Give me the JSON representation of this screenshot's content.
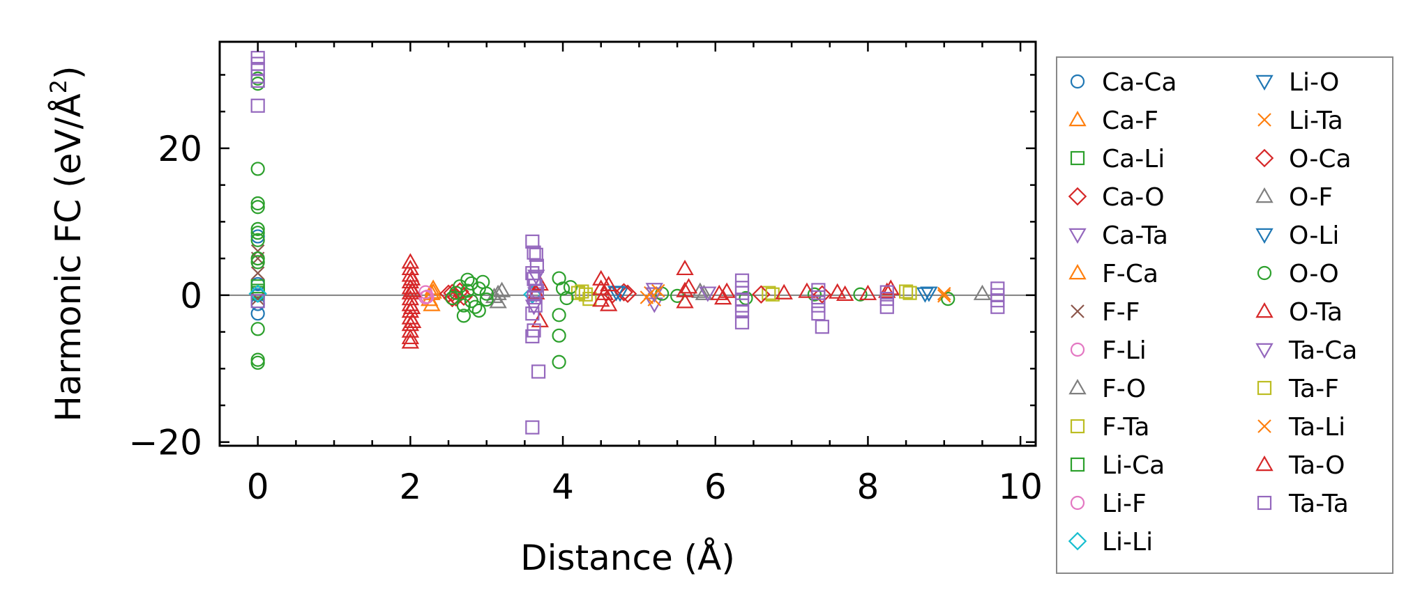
{
  "chart_data": {
    "type": "scatter",
    "title": "",
    "xlabel": "Distance (Å)",
    "ylabel_main": "Harmonic FC (eV/Å",
    "ylabel_sup": "2",
    "ylabel_close": ")",
    "xlim": [
      -0.5,
      10.2
    ],
    "ylim": [
      -20.5,
      34.5
    ],
    "xticks": [
      0,
      2,
      4,
      6,
      8,
      10
    ],
    "xtick_labels": [
      "0",
      "2",
      "4",
      "6",
      "8",
      "10"
    ],
    "yticks": [
      -20,
      0,
      20
    ],
    "ytick_labels": [
      "−20",
      "0",
      "20"
    ],
    "xminor": [
      -0.5,
      0.5,
      1,
      1.5,
      2.5,
      3,
      3.5,
      4.5,
      5,
      5.5,
      6.5,
      7,
      7.5,
      8.5,
      9,
      9.5
    ],
    "yminor": [
      -15,
      -10,
      -5,
      5,
      10,
      15,
      25,
      30
    ],
    "zero_line": true,
    "legend_position": "outside-right",
    "series": [
      {
        "name": "Ca-Ca",
        "marker": "circle",
        "color": "#1f77b4",
        "points": [
          [
            0,
            0
          ],
          [
            0,
            -2.5
          ],
          [
            0,
            1.5
          ],
          [
            0,
            8
          ],
          [
            0,
            -1.2
          ]
        ]
      },
      {
        "name": "Ca-F",
        "marker": "triangle-up",
        "color": "#ff7f0e",
        "points": [
          [
            2.28,
            0.2
          ],
          [
            2.28,
            -1.3
          ],
          [
            2.3,
            0.9
          ]
        ]
      },
      {
        "name": "Ca-Li",
        "marker": "square",
        "color": "#2ca02c",
        "points": [
          [
            0,
            0.3
          ],
          [
            0,
            0.6
          ]
        ]
      },
      {
        "name": "Ca-O",
        "marker": "diamond",
        "color": "#d62728",
        "points": [
          [
            2.55,
            0.3
          ],
          [
            2.6,
            -0.3
          ],
          [
            2.65,
            0.5
          ],
          [
            2.7,
            -0.2
          ],
          [
            4.65,
            0.1
          ],
          [
            4.85,
            0.2
          ]
        ]
      },
      {
        "name": "Ca-Ta",
        "marker": "triangle-down",
        "color": "#9467bd",
        "points": [
          [
            3.65,
            0.2
          ],
          [
            5.2,
            -1.2
          ],
          [
            5.2,
            0.8
          ]
        ]
      },
      {
        "name": "F-Ca",
        "marker": "triangle-up",
        "color": "#ff7f0e",
        "points": [
          [
            2.25,
            -0.6
          ],
          [
            2.3,
            0.4
          ]
        ]
      },
      {
        "name": "F-F",
        "marker": "x",
        "color": "#8c564b",
        "points": [
          [
            0,
            5
          ],
          [
            0,
            3
          ],
          [
            0,
            6
          ],
          [
            0,
            -0.5
          ]
        ]
      },
      {
        "name": "F-Li",
        "marker": "circle",
        "color": "#e377c2",
        "points": [
          [
            2.2,
            0.4
          ],
          [
            2.22,
            -0.2
          ]
        ]
      },
      {
        "name": "F-O",
        "marker": "triangle-up",
        "color": "#7f7f7f",
        "points": [
          [
            3.15,
            0.2
          ],
          [
            3.15,
            -0.9
          ],
          [
            3.2,
            0.6
          ],
          [
            5.85,
            0.2
          ],
          [
            9.5,
            0.2
          ]
        ]
      },
      {
        "name": "F-Ta",
        "marker": "square",
        "color": "#bcbd22",
        "points": [
          [
            4.2,
            0.3
          ],
          [
            4.3,
            0.1
          ],
          [
            6.7,
            0.3
          ],
          [
            8.5,
            0.5
          ]
        ]
      },
      {
        "name": "Li-Ca",
        "marker": "square",
        "color": "#2ca02c",
        "points": [
          [
            0,
            1.2
          ]
        ]
      },
      {
        "name": "Li-F",
        "marker": "circle",
        "color": "#e377c2",
        "points": [
          [
            2.2,
            -0.3
          ]
        ]
      },
      {
        "name": "Li-Li",
        "marker": "diamond",
        "color": "#17becf",
        "points": [
          [
            0,
            0.2
          ],
          [
            3.6,
            0.1
          ]
        ]
      },
      {
        "name": "Li-O",
        "marker": "triangle-down",
        "color": "#1f77b4",
        "points": [
          [
            4.75,
            0.3
          ],
          [
            8.75,
            0.2
          ]
        ]
      },
      {
        "name": "Li-Ta",
        "marker": "x",
        "color": "#ff7f0e",
        "points": [
          [
            5.15,
            0.3
          ],
          [
            5.2,
            -0.6
          ],
          [
            9.0,
            -0.1
          ]
        ]
      },
      {
        "name": "O-Ca",
        "marker": "diamond",
        "color": "#d62728",
        "points": [
          [
            2.5,
            0.2
          ],
          [
            2.55,
            -0.4
          ],
          [
            4.8,
            0.4
          ],
          [
            6.6,
            0.1
          ],
          [
            7.4,
            0.1
          ]
        ]
      },
      {
        "name": "O-F",
        "marker": "triangle-up",
        "color": "#7f7f7f",
        "points": [
          [
            3.1,
            -0.2
          ],
          [
            5.8,
            0.5
          ]
        ]
      },
      {
        "name": "O-Li",
        "marker": "triangle-down",
        "color": "#1f77b4",
        "points": [
          [
            4.7,
            0.4
          ],
          [
            8.8,
            0.3
          ]
        ]
      },
      {
        "name": "O-O",
        "marker": "circle",
        "color": "#2ca02c",
        "points": [
          [
            0,
            29.5
          ],
          [
            0,
            28.8
          ],
          [
            0,
            17.2
          ],
          [
            0,
            12.5
          ],
          [
            0,
            12
          ],
          [
            0,
            9
          ],
          [
            0,
            8.5
          ],
          [
            0,
            7.5
          ],
          [
            0,
            5
          ],
          [
            0,
            4.5
          ],
          [
            0,
            -4.6
          ],
          [
            0,
            -8.8
          ],
          [
            0,
            -9.2
          ],
          [
            2.55,
            -0.4
          ],
          [
            2.6,
            0.3
          ],
          [
            2.65,
            1.2
          ],
          [
            2.7,
            -1.4
          ],
          [
            2.7,
            -2.8
          ],
          [
            2.75,
            0.6
          ],
          [
            2.75,
            2.1
          ],
          [
            2.8,
            -0.8
          ],
          [
            2.8,
            1.6
          ],
          [
            2.85,
            -1.6
          ],
          [
            2.9,
            0.9
          ],
          [
            2.9,
            -2.1
          ],
          [
            2.95,
            1.8
          ],
          [
            3,
            0.2
          ],
          [
            3,
            -0.6
          ],
          [
            3.95,
            -2.7
          ],
          [
            3.95,
            -5.5
          ],
          [
            3.95,
            -9.1
          ],
          [
            3.95,
            2.3
          ],
          [
            4,
            0.9
          ],
          [
            4.05,
            -0.4
          ],
          [
            4.1,
            1.1
          ],
          [
            5.3,
            0.2
          ],
          [
            5.5,
            -0.1
          ],
          [
            6.4,
            -0.4
          ],
          [
            7.3,
            0.1
          ],
          [
            7.9,
            0.1
          ],
          [
            9.05,
            -0.5
          ]
        ]
      },
      {
        "name": "O-Ta",
        "marker": "triangle-up",
        "color": "#d62728",
        "points": [
          [
            3.65,
            0.3
          ],
          [
            3.7,
            -3.5
          ],
          [
            3.7,
            1.5
          ],
          [
            4.5,
            2.2
          ],
          [
            5.6,
            3.6
          ],
          [
            7.7,
            0.1
          ],
          [
            8.3,
            0.9
          ]
        ]
      },
      {
        "name": "Ta-Ca",
        "marker": "triangle-down",
        "color": "#9467bd",
        "points": [
          [
            3.62,
            -1.5
          ],
          [
            3.65,
            2.6
          ],
          [
            5.2,
            0.2
          ],
          [
            5.9,
            0.3
          ]
        ]
      },
      {
        "name": "Ta-F",
        "marker": "square",
        "color": "#bcbd22",
        "points": [
          [
            4.25,
            0.5
          ],
          [
            4.35,
            -0.5
          ],
          [
            6.75,
            0.1
          ],
          [
            8.55,
            0.3
          ]
        ]
      },
      {
        "name": "Ta-Li",
        "marker": "x",
        "color": "#ff7f0e",
        "points": [
          [
            5.1,
            -0.3
          ],
          [
            5.25,
            0.6
          ],
          [
            9.0,
            0.2
          ]
        ]
      },
      {
        "name": "Ta-O",
        "marker": "triangle-up",
        "color": "#d62728",
        "points": [
          [
            2,
            4.5
          ],
          [
            2,
            3.6
          ],
          [
            2,
            2.7
          ],
          [
            2,
            1.8
          ],
          [
            2,
            1
          ],
          [
            2,
            0.3
          ],
          [
            2,
            -0.5
          ],
          [
            2,
            -1.3
          ],
          [
            2,
            -2.2
          ],
          [
            2,
            -3.1
          ],
          [
            2,
            -4
          ],
          [
            2,
            -4.9
          ],
          [
            2,
            -5.8
          ],
          [
            2,
            -6.4
          ],
          [
            2.02,
            2.2
          ],
          [
            2.02,
            -1.7
          ],
          [
            2.03,
            -3.6
          ],
          [
            2.03,
            0.6
          ],
          [
            4.5,
            0.9
          ],
          [
            4.5,
            -0.7
          ],
          [
            4.55,
            0.2
          ],
          [
            4.6,
            1.4
          ],
          [
            4.6,
            -1.3
          ],
          [
            5.6,
            0.6
          ],
          [
            5.6,
            -0.9
          ],
          [
            5.65,
            1.1
          ],
          [
            6.05,
            0.2
          ],
          [
            6.1,
            -0.4
          ],
          [
            6.15,
            0.5
          ],
          [
            6.9,
            0.3
          ],
          [
            7.2,
            0.5
          ],
          [
            7.6,
            0.4
          ],
          [
            8.0,
            0.2
          ],
          [
            8.25,
            0.5
          ]
        ]
      },
      {
        "name": "Ta-Ta",
        "marker": "square",
        "color": "#9467bd",
        "points": [
          [
            0,
            32.3
          ],
          [
            0,
            31.5
          ],
          [
            0,
            30.8
          ],
          [
            0,
            29.8
          ],
          [
            0,
            29.2
          ],
          [
            0,
            25.8
          ],
          [
            0,
            -0.8
          ],
          [
            3.6,
            7.3
          ],
          [
            3.62,
            5.8
          ],
          [
            3.65,
            5.5
          ],
          [
            3.66,
            4
          ],
          [
            3.6,
            3
          ],
          [
            3.62,
            2.2
          ],
          [
            3.64,
            1.3
          ],
          [
            3.66,
            0.6
          ],
          [
            3.62,
            -0.3
          ],
          [
            3.64,
            -1.4
          ],
          [
            3.6,
            -2.5
          ],
          [
            3.62,
            -4.8
          ],
          [
            3.6,
            -5.6
          ],
          [
            3.68,
            -10.4
          ],
          [
            3.6,
            -18
          ],
          [
            6.35,
            2
          ],
          [
            6.35,
            1
          ],
          [
            6.35,
            0.3
          ],
          [
            6.35,
            -0.6
          ],
          [
            6.35,
            -1.4
          ],
          [
            6.35,
            -2.2
          ],
          [
            6.35,
            -3.7
          ],
          [
            7.35,
            0.7
          ],
          [
            7.35,
            -0.3
          ],
          [
            7.35,
            -1.4
          ],
          [
            7.35,
            -2.5
          ],
          [
            7.4,
            -4.3
          ],
          [
            8.25,
            0.4
          ],
          [
            8.25,
            -0.5
          ],
          [
            8.25,
            -1.6
          ],
          [
            9.7,
            0.9
          ],
          [
            9.7,
            0
          ],
          [
            9.7,
            -0.7
          ],
          [
            9.7,
            -1.6
          ]
        ]
      }
    ]
  }
}
